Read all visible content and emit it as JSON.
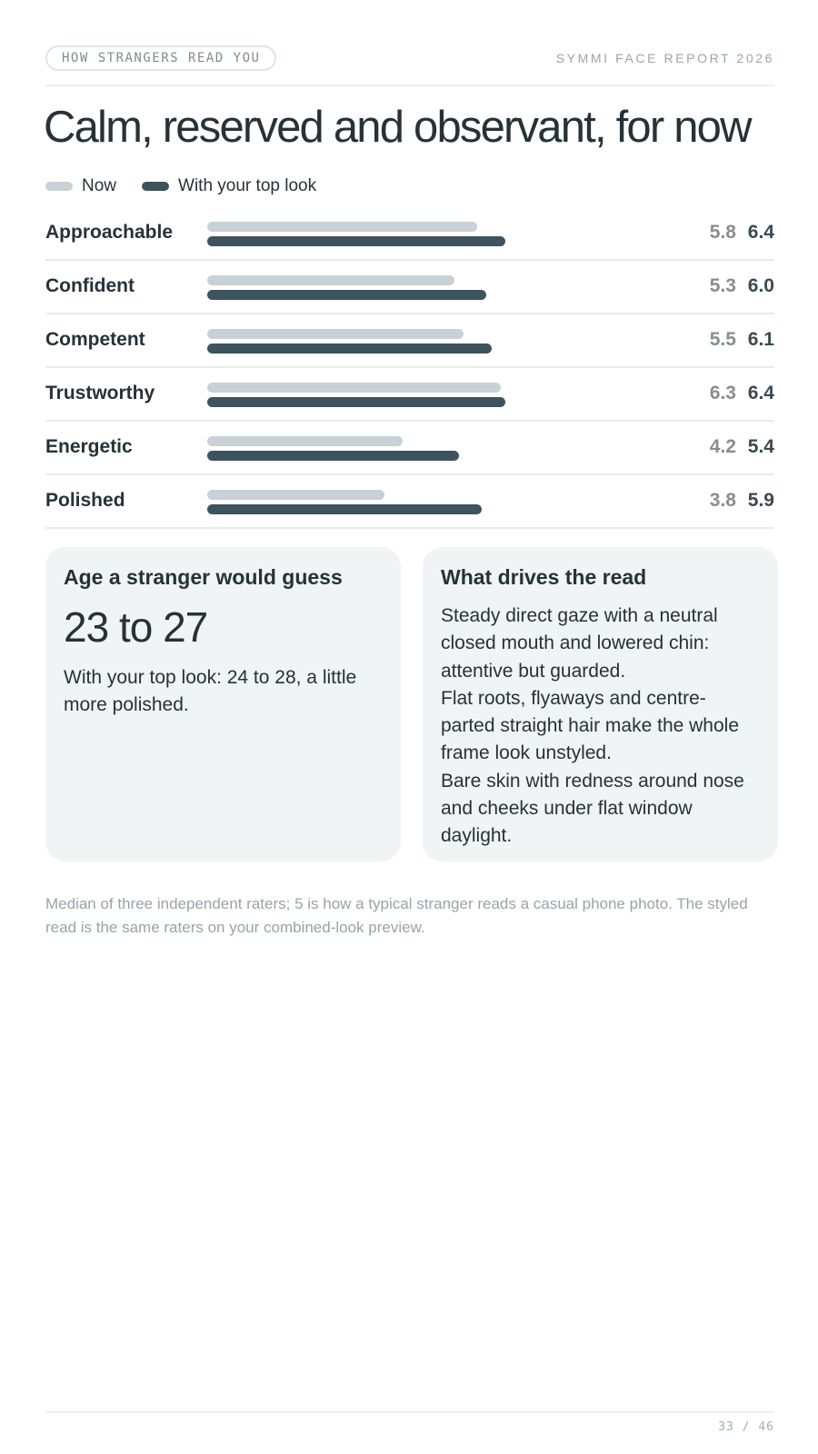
{
  "header": {
    "section_label": "HOW STRANGERS READ YOU",
    "brand": "SYMMI FACE REPORT 2026"
  },
  "title": "Calm, reserved and observant, for now",
  "legend": {
    "now_label": "Now",
    "top_label": "With your top look"
  },
  "colors": {
    "now": "#c8d1d5",
    "top": "#3d535d",
    "card_bg": "#f0f4f4"
  },
  "chart_data": {
    "type": "bar",
    "orientation": "horizontal",
    "categories": [
      "Approachable",
      "Confident",
      "Competent",
      "Trustworthy",
      "Energetic",
      "Polished"
    ],
    "series": [
      {
        "name": "Now",
        "values": [
          5.8,
          5.3,
          5.5,
          6.3,
          4.2,
          3.8
        ]
      },
      {
        "name": "With your top look",
        "values": [
          6.4,
          6.0,
          6.1,
          6.4,
          5.4,
          5.9
        ]
      }
    ],
    "value_labels_now": [
      "5.8",
      "5.3",
      "5.5",
      "6.3",
      "4.2",
      "3.8"
    ],
    "value_labels_top": [
      "6.4",
      "6.0",
      "6.1",
      "6.4",
      "5.4",
      "5.9"
    ],
    "xlim": [
      0,
      10
    ],
    "legend_position": "top-left",
    "grid": false
  },
  "age_card": {
    "title": "Age a stranger would guess",
    "range": "23 to 27",
    "note": "With your top look: 24 to 28, a little more polished."
  },
  "drivers_card": {
    "title": "What drives the read",
    "items": [
      "Steady direct gaze with a neutral closed mouth and lowered chin: attentive but guarded.",
      "Flat roots, flyaways and centre-parted straight hair make the whole frame look unstyled.",
      "Bare skin with redness around nose and cheeks under flat window daylight."
    ]
  },
  "footnote": "Median of three independent raters; 5 is how a typical stranger reads a casual phone photo. The styled read is the same raters on your combined-look preview.",
  "page_number": "33 / 46"
}
